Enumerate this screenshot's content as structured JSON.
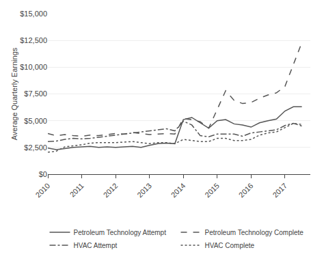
{
  "chart_data": {
    "type": "line",
    "ylabel": "Average Quarterly Earnings",
    "xlim": [
      2010.0,
      2017.75
    ],
    "xticks": [
      2010,
      2011,
      2012,
      2013,
      2014,
      2015,
      2016,
      2017
    ],
    "ylim": [
      0,
      15000
    ],
    "yticks": [
      {
        "value": 0,
        "label": "$0"
      },
      {
        "value": 2500,
        "label": "$2,500"
      },
      {
        "value": 5000,
        "label": "$5,000"
      },
      {
        "value": 7500,
        "label": "$7,500"
      },
      {
        "value": 10000,
        "label": "$10,000"
      },
      {
        "value": 12500,
        "label": "$12,500"
      },
      {
        "value": 15000,
        "label": "$15,000"
      }
    ],
    "grid": true,
    "legend": "bottom",
    "x": [
      2010.0,
      2010.25,
      2010.5,
      2010.75,
      2011.0,
      2011.25,
      2011.5,
      2011.75,
      2012.0,
      2012.25,
      2012.5,
      2012.75,
      2013.0,
      2013.25,
      2013.5,
      2013.75,
      2014.0,
      2014.25,
      2014.5,
      2014.75,
      2015.0,
      2015.25,
      2015.5,
      2015.75,
      2016.0,
      2016.25,
      2016.5,
      2016.75,
      2017.0,
      2017.25,
      2017.5
    ],
    "series": [
      {
        "name": "Petroleum Technology Attempt",
        "color": "#555555",
        "line_style": "solid",
        "values": [
          2450,
          2300,
          2400,
          2500,
          2550,
          2600,
          2500,
          2550,
          2500,
          2550,
          2600,
          2500,
          2700,
          2850,
          2900,
          2850,
          5100,
          5300,
          4800,
          4300,
          5000,
          5100,
          4700,
          4600,
          4400,
          4800,
          5000,
          5150,
          5900,
          6300,
          6300
        ]
      },
      {
        "name": "Petroleum Technology Complete",
        "color": "#555555",
        "line_style": "dashed",
        "values": [
          3800,
          3600,
          3700,
          3600,
          3550,
          3650,
          3600,
          3700,
          3800,
          3750,
          3900,
          3800,
          3700,
          3750,
          3800,
          3750,
          5200,
          5100,
          4900,
          4300,
          6100,
          7800,
          6900,
          6600,
          6700,
          7100,
          7400,
          7600,
          8200,
          10200,
          12300
        ]
      },
      {
        "name": "HVAC Attempt",
        "color": "#555555",
        "line_style": "dashdot",
        "values": [
          3050,
          3100,
          3250,
          3350,
          3300,
          3350,
          3450,
          3550,
          3650,
          3750,
          3850,
          3950,
          4050,
          4150,
          4250,
          4050,
          4950,
          4600,
          3600,
          3500,
          3750,
          3750,
          3750,
          3550,
          3850,
          3950,
          4050,
          4150,
          4550,
          4750,
          4500
        ]
      },
      {
        "name": "HVAC Complete",
        "color": "#555555",
        "line_style": "dotted",
        "values": [
          2050,
          2150,
          2550,
          2650,
          2750,
          2900,
          2950,
          2950,
          2950,
          3000,
          3050,
          2950,
          2850,
          2950,
          2950,
          2850,
          3250,
          3150,
          3050,
          3050,
          3350,
          3350,
          3150,
          3150,
          3250,
          3650,
          3850,
          3950,
          4350,
          4750,
          4650
        ]
      }
    ]
  }
}
